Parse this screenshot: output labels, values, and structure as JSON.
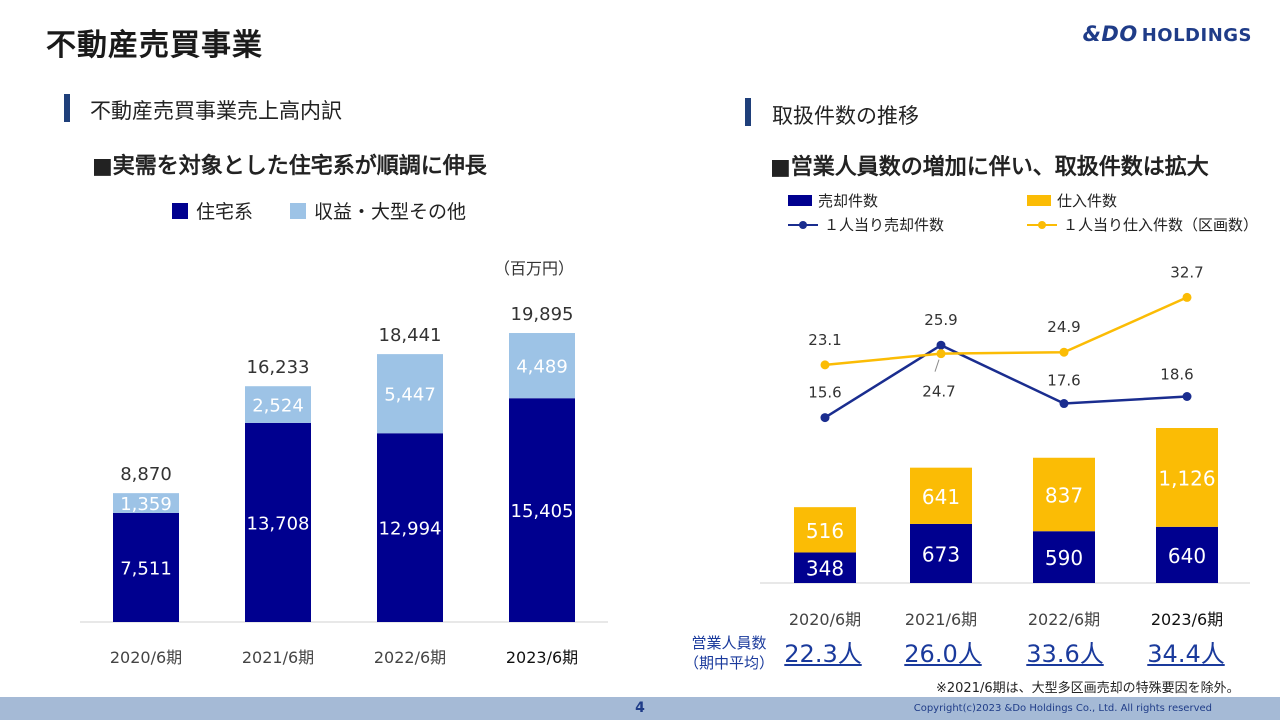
{
  "page": {
    "title": "不動産売買事業",
    "logo_main": "&DO",
    "logo_sub": "HOLDINGS",
    "page_number": "4",
    "copyright": "Copyright(c)2023 &Do Holdings Co., Ltd. All rights reserved"
  },
  "left": {
    "section_title": "不動産売買事業売上高内訳",
    "subtitle": "■実需を対象とした住宅系が順調に伸長",
    "unit": "（百万円）"
  },
  "right": {
    "section_title": "取扱件数の推移",
    "subtitle": "■営業人員数の増加に伴い、取扱件数は拡大",
    "employees_label_line1": "営業人員数",
    "employees_label_line2": "（期中平均）",
    "employees": [
      "22.3人",
      "26.0人",
      "33.6人",
      "34.4人"
    ],
    "note": "※2021/6期は、大型多区画売却の特殊要因を除外。"
  },
  "colors": {
    "navy": "#00008f",
    "light_blue": "#9dc3e6",
    "gold": "#fbbc05",
    "line_navy": "#1a2d8f",
    "accent_bar": "#1f3f7a"
  },
  "chart_data": [
    {
      "type": "bar",
      "stacked": true,
      "categories": [
        "2020/6期",
        "2021/6期",
        "2022/6期",
        "2023/6期"
      ],
      "series": [
        {
          "name": "住宅系",
          "values": [
            7511,
            13708,
            12994,
            15405
          ]
        },
        {
          "name": "収益・大型その他",
          "values": [
            1359,
            2524,
            5447,
            4489
          ]
        }
      ],
      "value_labels": [
        [
          "7,511",
          "13,708",
          "12,994",
          "15,405"
        ],
        [
          "1,359",
          "2,524",
          "5,447",
          "4,489"
        ]
      ],
      "totals": [
        "8,870",
        "16,233",
        "18,441",
        "19,895"
      ],
      "legend": "top",
      "ylim": [
        0,
        25000
      ]
    },
    {
      "type": "bar",
      "stacked": true,
      "categories": [
        "2020/6期",
        "2021/6期",
        "2022/6期",
        "2023/6期"
      ],
      "series": [
        {
          "name": "売却件数",
          "values": [
            348,
            673,
            590,
            640
          ]
        },
        {
          "name": "仕入件数",
          "values": [
            516,
            641,
            837,
            1126
          ]
        }
      ],
      "value_labels": [
        [
          "348",
          "673",
          "590",
          "640"
        ],
        [
          "516",
          "641",
          "837",
          "1,126"
        ]
      ],
      "lines": [
        {
          "name": "１人当り売却件数",
          "values": [
            15.6,
            25.9,
            17.6,
            18.6
          ]
        },
        {
          "name": "１人当り仕入件数（区画数）",
          "values": [
            23.1,
            24.7,
            24.9,
            32.7
          ]
        }
      ],
      "line_labels": [
        [
          "15.6",
          "25.9",
          "17.6",
          "18.6"
        ],
        [
          "23.1",
          "24.7",
          "24.9",
          "32.7"
        ]
      ],
      "legend": "top"
    }
  ]
}
